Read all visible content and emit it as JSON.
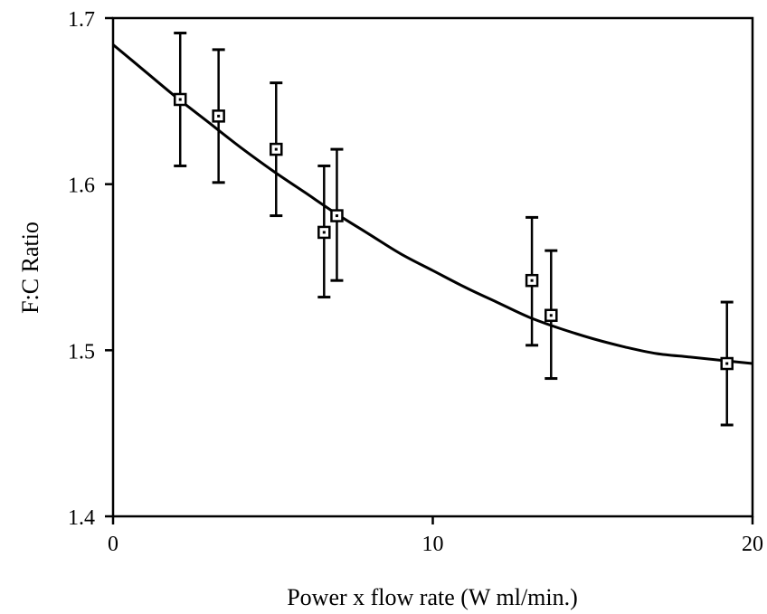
{
  "chart_data": {
    "type": "scatter",
    "title": "",
    "xlabel": "Power x flow rate (W ml/min.)",
    "ylabel": "F:C Ratio",
    "xlim": [
      0,
      20
    ],
    "ylim": [
      1.4,
      1.7
    ],
    "x_ticks": [
      "0",
      "10",
      "20"
    ],
    "y_ticks": [
      "1.4",
      "1.5",
      "1.6",
      "1.7"
    ],
    "x_tick_values": [
      0,
      10,
      20
    ],
    "y_tick_values": [
      1.4,
      1.5,
      1.6,
      1.7
    ],
    "grid": false,
    "legend": "none",
    "marker": "open-square",
    "series": [
      {
        "x": [
          2.1,
          3.3,
          5.1,
          6.6,
          7.0,
          13.1,
          13.7,
          19.2
        ],
        "y": [
          1.651,
          1.641,
          1.621,
          1.571,
          1.581,
          1.542,
          1.521,
          1.492
        ],
        "error_low": [
          1.611,
          1.601,
          1.581,
          1.532,
          1.542,
          1.503,
          1.483,
          1.455
        ],
        "error_high": [
          1.691,
          1.681,
          1.661,
          1.611,
          1.621,
          1.58,
          1.56,
          1.529
        ]
      }
    ],
    "fit_curve": {
      "x": [
        0,
        1,
        2,
        3,
        4,
        5,
        6,
        7,
        8,
        9,
        10,
        11,
        12,
        13,
        14,
        15,
        16,
        17,
        18,
        19,
        20
      ],
      "y": [
        1.684,
        1.668,
        1.652,
        1.637,
        1.622,
        1.608,
        1.595,
        1.582,
        1.57,
        1.558,
        1.548,
        1.538,
        1.529,
        1.52,
        1.513,
        1.507,
        1.502,
        1.498,
        1.496,
        1.494,
        1.492
      ]
    },
    "colors": {
      "ink": "#000000",
      "background": "#ffffff"
    }
  }
}
